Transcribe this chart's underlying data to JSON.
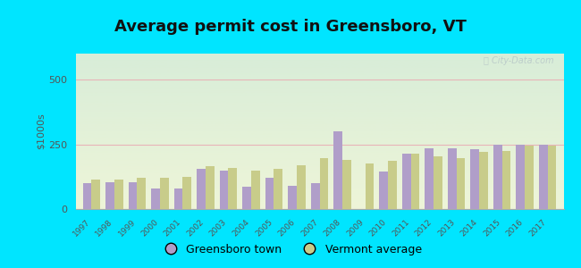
{
  "title": "Average permit cost in Greensboro, VT",
  "ylabel": "$1000s",
  "years": [
    1997,
    1998,
    1999,
    2000,
    2001,
    2002,
    2003,
    2004,
    2005,
    2006,
    2007,
    2008,
    2009,
    2010,
    2011,
    2012,
    2013,
    2014,
    2015,
    2016,
    2017
  ],
  "greensboro": [
    100,
    105,
    105,
    80,
    80,
    155,
    150,
    85,
    120,
    90,
    100,
    300,
    0,
    145,
    215,
    235,
    235,
    230,
    250,
    250,
    250
  ],
  "vermont_avg": [
    115,
    115,
    120,
    120,
    125,
    165,
    160,
    150,
    155,
    170,
    195,
    190,
    175,
    185,
    215,
    205,
    195,
    220,
    225,
    245,
    245
  ],
  "greensboro_color": "#b09ec9",
  "vermont_color": "#c8cc8a",
  "background_outer": "#00e5ff",
  "background_top": "#d8edd8",
  "background_bottom": "#eef5d8",
  "grid_color": "#e8b4b8",
  "ylim": [
    0,
    600
  ],
  "yticks": [
    0,
    250,
    500
  ],
  "bar_width": 0.38,
  "title_fontsize": 13,
  "legend_labels": [
    "Greensboro town",
    "Vermont average"
  ],
  "watermark": "City-Data.com"
}
